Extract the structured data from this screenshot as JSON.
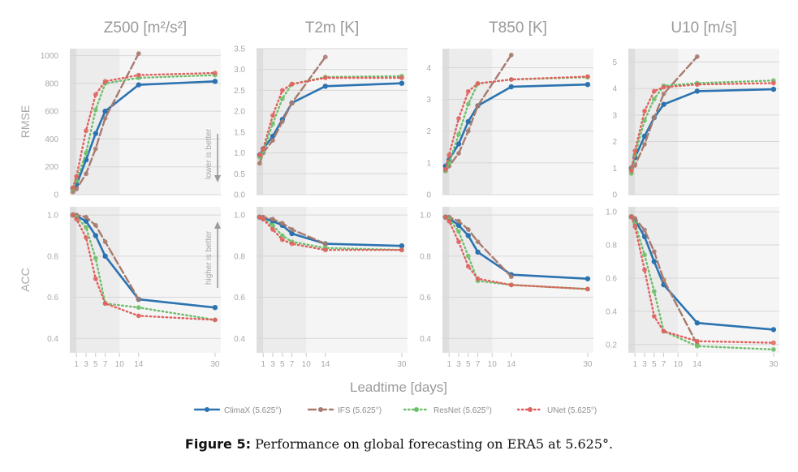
{
  "chart_data": {
    "type": "line",
    "x_ticks": [
      1,
      3,
      5,
      7,
      10,
      14,
      30
    ],
    "xlabel": "Leadtime [days]",
    "row_labels": [
      "RMSE",
      "ACC"
    ],
    "rmse_annotation": "lower is better",
    "acc_annotation": "higher is better",
    "shading": {
      "dark_range": [
        0,
        1
      ],
      "light_range": [
        1,
        10
      ]
    },
    "legend": [
      {
        "name": "ClimaX (5.625°)",
        "color": "#2b73b0",
        "style": "solid"
      },
      {
        "name": "IFS (5.625°)",
        "color": "#a87a6e",
        "style": "dashed"
      },
      {
        "name": "ResNet (5.625°)",
        "color": "#6cbf6a",
        "style": "dotted"
      },
      {
        "name": "UNet (5.625°)",
        "color": "#e0605e",
        "style": "dotted"
      }
    ],
    "panels": [
      {
        "title": "Z500 [m²/s²]",
        "rmse": {
          "ylim": [
            0,
            1050
          ],
          "yticks": [
            0,
            200,
            400,
            600,
            800,
            1000
          ],
          "series": [
            {
              "name": "ClimaX (5.625°)",
              "x": [
                0.25,
                1,
                3,
                5,
                7,
                14,
                30
              ],
              "values": [
                45,
                70,
                250,
                440,
                600,
                790,
                815
              ]
            },
            {
              "name": "IFS (5.625°)",
              "x": [
                0.25,
                1,
                3,
                5,
                7,
                14
              ],
              "values": [
                20,
                40,
                150,
                330,
                550,
                1015
              ]
            },
            {
              "name": "ResNet (5.625°)",
              "x": [
                0.25,
                1,
                3,
                5,
                7,
                14,
                30
              ],
              "values": [
                40,
                100,
                300,
                610,
                800,
                840,
                860
              ]
            },
            {
              "name": "UNet (5.625°)",
              "x": [
                0.25,
                1,
                3,
                5,
                7,
                14,
                30
              ],
              "values": [
                50,
                130,
                460,
                720,
                815,
                860,
                875
              ]
            }
          ]
        },
        "acc": {
          "ylim": [
            0.33,
            1.04
          ],
          "yticks": [
            0.4,
            0.6,
            0.8,
            1.0
          ],
          "series": [
            {
              "name": "ClimaX (5.625°)",
              "x": [
                0.25,
                1,
                3,
                5,
                7,
                14,
                30
              ],
              "values": [
                1.0,
                0.995,
                0.97,
                0.9,
                0.8,
                0.59,
                0.55
              ]
            },
            {
              "name": "IFS (5.625°)",
              "x": [
                0.25,
                1,
                3,
                5,
                7,
                14
              ],
              "values": [
                1.0,
                1.0,
                0.99,
                0.95,
                0.87,
                0.59
              ]
            },
            {
              "name": "ResNet (5.625°)",
              "x": [
                0.25,
                1,
                3,
                5,
                7,
                14,
                30
              ],
              "values": [
                1.0,
                0.99,
                0.94,
                0.79,
                0.57,
                0.55,
                0.49
              ]
            },
            {
              "name": "UNet (5.625°)",
              "x": [
                0.25,
                1,
                3,
                5,
                7,
                14,
                30
              ],
              "values": [
                1.0,
                0.98,
                0.89,
                0.69,
                0.57,
                0.51,
                0.49
              ]
            }
          ]
        }
      },
      {
        "title": "T2m [K]",
        "rmse": {
          "ylim": [
            0,
            3.5
          ],
          "yticks": [
            0.0,
            0.5,
            1.0,
            1.5,
            2.0,
            2.5,
            3.0,
            3.5
          ],
          "series": [
            {
              "name": "ClimaX (5.625°)",
              "x": [
                0.25,
                1,
                3,
                5,
                7,
                14,
                30
              ],
              "values": [
                0.95,
                1.1,
                1.4,
                1.8,
                2.2,
                2.6,
                2.67
              ]
            },
            {
              "name": "IFS (5.625°)",
              "x": [
                0.25,
                1,
                3,
                5,
                7,
                14
              ],
              "values": [
                0.75,
                1.0,
                1.3,
                1.75,
                2.2,
                3.3
              ]
            },
            {
              "name": "ResNet (5.625°)",
              "x": [
                0.25,
                1,
                3,
                5,
                7,
                14,
                30
              ],
              "values": [
                0.9,
                1.05,
                1.7,
                2.3,
                2.65,
                2.82,
                2.84
              ]
            },
            {
              "name": "UNet (5.625°)",
              "x": [
                0.25,
                1,
                3,
                5,
                7,
                14,
                30
              ],
              "values": [
                0.95,
                1.1,
                1.9,
                2.5,
                2.65,
                2.8,
                2.8
              ]
            }
          ]
        },
        "acc": {
          "ylim": [
            0.33,
            1.04
          ],
          "yticks": [
            0.4,
            0.6,
            0.8,
            1.0
          ],
          "series": [
            {
              "name": "ClimaX (5.625°)",
              "x": [
                0.25,
                1,
                3,
                5,
                7,
                14,
                30
              ],
              "values": [
                0.99,
                0.985,
                0.97,
                0.95,
                0.91,
                0.86,
                0.85
              ]
            },
            {
              "name": "IFS (5.625°)",
              "x": [
                0.25,
                1,
                3,
                5,
                7,
                14
              ],
              "values": [
                0.99,
                0.99,
                0.98,
                0.96,
                0.93,
                0.86
              ]
            },
            {
              "name": "ResNet (5.625°)",
              "x": [
                0.25,
                1,
                3,
                5,
                7,
                14,
                30
              ],
              "values": [
                0.99,
                0.98,
                0.95,
                0.9,
                0.87,
                0.84,
                0.83
              ]
            },
            {
              "name": "UNet (5.625°)",
              "x": [
                0.25,
                1,
                3,
                5,
                7,
                14,
                30
              ],
              "values": [
                0.99,
                0.98,
                0.93,
                0.88,
                0.86,
                0.83,
                0.83
              ]
            }
          ]
        }
      },
      {
        "title": "T850 [K]",
        "rmse": {
          "ylim": [
            0,
            4.6
          ],
          "yticks": [
            0,
            1,
            2,
            3,
            4
          ],
          "series": [
            {
              "name": "ClimaX (5.625°)",
              "x": [
                0.25,
                1,
                3,
                5,
                7,
                14,
                30
              ],
              "values": [
                0.9,
                1.1,
                1.6,
                2.3,
                2.8,
                3.4,
                3.47
              ]
            },
            {
              "name": "IFS (5.625°)",
              "x": [
                0.25,
                1,
                3,
                5,
                7,
                14
              ],
              "values": [
                0.75,
                0.9,
                1.3,
                2.0,
                2.8,
                4.4
              ]
            },
            {
              "name": "ResNet (5.625°)",
              "x": [
                0.25,
                1,
                3,
                5,
                7,
                14,
                30
              ],
              "values": [
                0.75,
                1.0,
                1.9,
                2.85,
                3.5,
                3.63,
                3.7
              ]
            },
            {
              "name": "UNet (5.625°)",
              "x": [
                0.25,
                1,
                3,
                5,
                7,
                14,
                30
              ],
              "values": [
                0.8,
                1.25,
                2.4,
                3.25,
                3.5,
                3.63,
                3.72
              ]
            }
          ]
        },
        "acc": {
          "ylim": [
            0.33,
            1.04
          ],
          "yticks": [
            0.4,
            0.6,
            0.8,
            1.0
          ],
          "series": [
            {
              "name": "ClimaX (5.625°)",
              "x": [
                0.25,
                1,
                3,
                5,
                7,
                14,
                30
              ],
              "values": [
                0.99,
                0.985,
                0.95,
                0.9,
                0.82,
                0.71,
                0.69
              ]
            },
            {
              "name": "IFS (5.625°)",
              "x": [
                0.25,
                1,
                3,
                5,
                7,
                14
              ],
              "values": [
                0.99,
                0.99,
                0.97,
                0.93,
                0.87,
                0.7
              ]
            },
            {
              "name": "ResNet (5.625°)",
              "x": [
                0.25,
                1,
                3,
                5,
                7,
                14,
                30
              ],
              "values": [
                0.99,
                0.98,
                0.92,
                0.8,
                0.68,
                0.66,
                0.64
              ]
            },
            {
              "name": "UNet (5.625°)",
              "x": [
                0.25,
                1,
                3,
                5,
                7,
                14,
                30
              ],
              "values": [
                0.99,
                0.97,
                0.87,
                0.75,
                0.69,
                0.66,
                0.64
              ]
            }
          ]
        }
      },
      {
        "title": "U10 [m/s]",
        "rmse": {
          "ylim": [
            0,
            5.5
          ],
          "yticks": [
            0,
            1,
            2,
            3,
            4,
            5
          ],
          "series": [
            {
              "name": "ClimaX (5.625°)",
              "x": [
                0.25,
                1,
                3,
                5,
                7,
                14,
                30
              ],
              "values": [
                1.0,
                1.4,
                2.2,
                2.9,
                3.4,
                3.9,
                3.97
              ]
            },
            {
              "name": "IFS (5.625°)",
              "x": [
                0.25,
                1,
                3,
                5,
                7,
                14
              ],
              "values": [
                1.0,
                1.1,
                1.9,
                2.9,
                3.8,
                5.2
              ]
            },
            {
              "name": "ResNet (5.625°)",
              "x": [
                0.25,
                1,
                3,
                5,
                7,
                14,
                30
              ],
              "values": [
                0.8,
                1.5,
                2.8,
                3.6,
                4.1,
                4.2,
                4.3
              ]
            },
            {
              "name": "UNet (5.625°)",
              "x": [
                0.25,
                1,
                3,
                5,
                7,
                14,
                30
              ],
              "values": [
                0.9,
                1.65,
                3.15,
                3.9,
                4.05,
                4.15,
                4.2
              ]
            }
          ]
        },
        "acc": {
          "ylim": [
            0.15,
            1.03
          ],
          "yticks": [
            0.2,
            0.4,
            0.6,
            0.8,
            1.0
          ],
          "series": [
            {
              "name": "ClimaX (5.625°)",
              "x": [
                0.25,
                1,
                3,
                5,
                7,
                14,
                30
              ],
              "values": [
                0.97,
                0.95,
                0.85,
                0.7,
                0.56,
                0.33,
                0.29
              ]
            },
            {
              "name": "IFS (5.625°)",
              "x": [
                0.25,
                1,
                3,
                5,
                7,
                14
              ],
              "values": [
                0.97,
                0.96,
                0.89,
                0.76,
                0.59,
                0.2
              ]
            },
            {
              "name": "ResNet (5.625°)",
              "x": [
                0.25,
                1,
                3,
                5,
                7,
                14,
                30
              ],
              "values": [
                0.97,
                0.93,
                0.74,
                0.52,
                0.28,
                0.19,
                0.17
              ]
            },
            {
              "name": "UNet (5.625°)",
              "x": [
                0.25,
                1,
                3,
                5,
                7,
                14,
                30
              ],
              "values": [
                0.97,
                0.91,
                0.65,
                0.37,
                0.28,
                0.22,
                0.21
              ]
            }
          ]
        }
      }
    ]
  },
  "caption": {
    "label": "Figure 5:",
    "text": " Performance on global forecasting on ERA5 at 5.625°."
  }
}
